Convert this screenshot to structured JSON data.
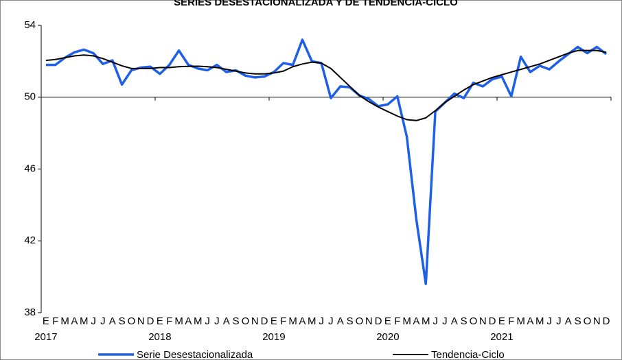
{
  "chart_data": {
    "type": "line",
    "title": "SERIES DESESTACIONALIZADA Y DE TENDENCIA-CICLO",
    "categories": [
      "E",
      "F",
      "M",
      "A",
      "M",
      "J",
      "J",
      "A",
      "S",
      "O",
      "N",
      "D",
      "E",
      "F",
      "M",
      "A",
      "M",
      "J",
      "J",
      "A",
      "S",
      "O",
      "N",
      "D",
      "E",
      "F",
      "M",
      "A",
      "M",
      "J",
      "J",
      "A",
      "S",
      "O",
      "N",
      "D",
      "E",
      "F",
      "M",
      "A",
      "M",
      "J",
      "J",
      "A",
      "S",
      "O",
      "N",
      "D",
      "E",
      "F",
      "M",
      "A",
      "M",
      "J",
      "J",
      "A",
      "S",
      "O",
      "N",
      "D"
    ],
    "years": [
      "2017",
      "2018",
      "2019",
      "2020",
      "2021"
    ],
    "series": [
      {
        "name": "Serie Desestacionalizada",
        "color": "#1f5fe8",
        "width": 3.5,
        "values": [
          51.8,
          51.8,
          52.2,
          52.5,
          52.65,
          52.45,
          51.85,
          52.05,
          50.7,
          51.5,
          51.65,
          51.7,
          51.3,
          51.8,
          52.6,
          51.8,
          51.6,
          51.5,
          51.8,
          51.4,
          51.5,
          51.2,
          51.1,
          51.15,
          51.4,
          51.9,
          51.8,
          53.2,
          52.0,
          51.9,
          49.95,
          50.6,
          50.55,
          50.1,
          49.9,
          49.5,
          49.6,
          50.05,
          47.8,
          43.2,
          39.6,
          49.2,
          49.7,
          50.2,
          49.95,
          50.8,
          50.6,
          51.0,
          51.15,
          50.05,
          52.25,
          51.4,
          51.75,
          51.55,
          52.0,
          52.4,
          52.8,
          52.45,
          52.8,
          52.4
        ]
      },
      {
        "name": "Tendencia-Ciclo",
        "color": "#000000",
        "width": 2,
        "values": [
          52.05,
          52.1,
          52.2,
          52.3,
          52.35,
          52.3,
          52.15,
          51.95,
          51.75,
          51.6,
          51.6,
          51.6,
          51.65,
          51.65,
          51.7,
          51.72,
          51.73,
          51.7,
          51.65,
          51.55,
          51.45,
          51.35,
          51.3,
          51.3,
          51.35,
          51.45,
          51.7,
          51.85,
          51.95,
          51.9,
          51.6,
          51.1,
          50.6,
          50.1,
          49.75,
          49.45,
          49.2,
          48.95,
          48.75,
          48.7,
          48.85,
          49.25,
          49.7,
          50.05,
          50.4,
          50.7,
          50.9,
          51.1,
          51.25,
          51.4,
          51.55,
          51.7,
          51.85,
          52.05,
          52.25,
          52.45,
          52.6,
          52.6,
          52.6,
          52.5
        ]
      }
    ],
    "ylim": [
      38,
      54
    ],
    "yticks": [
      38,
      42,
      46,
      50,
      54
    ],
    "x_axis_crosses": 50,
    "grid": false
  }
}
